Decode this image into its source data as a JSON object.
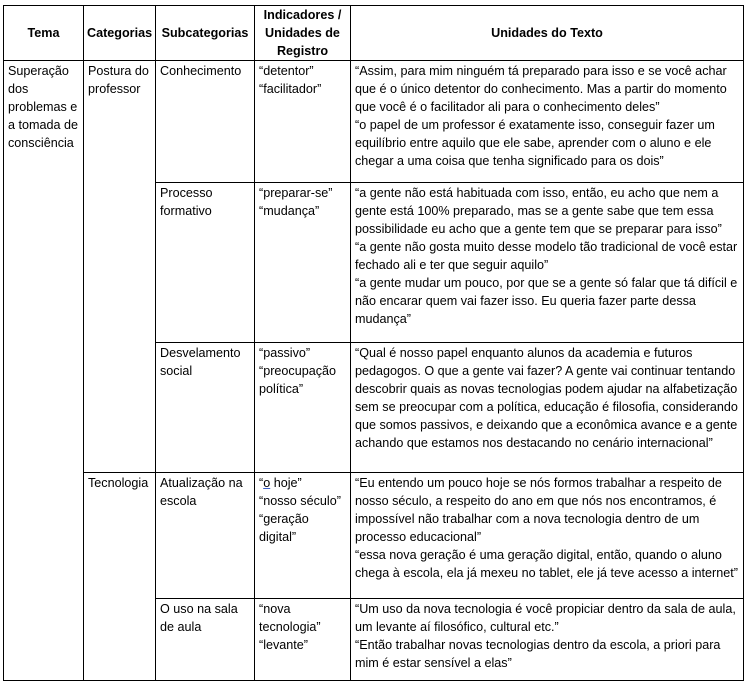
{
  "headers": [
    "Tema",
    "Categorias",
    "Subcategorias",
    "Indicadores / Unidades de Registro",
    "Unidades do Texto"
  ],
  "tema": "Superação dos problemas e a tomada de consciência",
  "categories": [
    {
      "name": "Postura do professor",
      "subcategories": [
        {
          "name": "Conhecimento",
          "indicators": [
            "“detentor”",
            "“facilitador”"
          ],
          "quotes": [
            "“Assim, para mim ninguém tá preparado para isso e se você achar que é o único detentor do conhecimento. Mas a partir do momento que você é o facilitador ali para o conhecimento deles”",
            "“o papel de um professor é exatamente isso, conseguir fazer um equilíbrio entre aquilo que ele sabe, aprender com o aluno e ele chegar a uma coisa que tenha significado para os dois”"
          ]
        },
        {
          "name": "Processo formativo",
          "indicators": [
            "“preparar-se”",
            "“mudança”"
          ],
          "quotes": [
            "“a gente não está habituada com isso, então, eu acho que nem a gente está 100% preparado, mas se a gente sabe que tem essa possibilidade eu acho que a gente tem que se preparar para isso”",
            "“a gente não gosta muito desse modelo tão tradicional de você estar fechado ali e ter que seguir aquilo”",
            "“a gente mudar um pouco, por que se a gente só falar que tá difícil e não encarar quem vai fazer isso. Eu queria fazer parte dessa mudança”"
          ]
        },
        {
          "name": "Desvelamento social",
          "indicators": [
            "“passivo”",
            "“preocupação política”"
          ],
          "quotes": [
            "“Qual é nosso papel enquanto alunos da academia e futuros pedagogos. O que a gente vai fazer? A gente vai continuar tentando descobrir quais as novas tecnologias podem ajudar na alfabetização sem se preocupar com a política, educação é filosofia, considerando que somos passivos, e deixando que a econômica avance e a gente achando que estamos nos destacando no cenário internacional”"
          ]
        }
      ]
    },
    {
      "name": "Tecnologia",
      "subcategories": [
        {
          "name": "Atualização na escola",
          "indicators": [
            "“",
            "o",
            " hoje”",
            "“nosso século”",
            "“geração digital”"
          ],
          "quotes": [
            "“Eu entendo um pouco hoje se nós formos trabalhar a respeito de nosso século, a respeito do ano em que nós nos encontramos, é impossível não trabalhar com a nova tecnologia dentro de um processo educacional”",
            "“essa nova geração é uma geração digital, então, quando o aluno chega à escola, ela já mexeu no tablet, ele já teve acesso a internet”"
          ]
        },
        {
          "name": "O uso na sala de aula",
          "indicators": [
            "“nova tecnologia”",
            "“levante”"
          ],
          "quotes": [
            "“Um uso da nova tecnologia é você propiciar dentro da sala de aula, um levante aí filosófico, cultural etc.”",
            "“Então trabalhar novas tecnologias dentro da escola, a priori para mim é estar sensível a elas”"
          ]
        }
      ]
    }
  ],
  "colors": {
    "border": "#000000",
    "spellcheck_underline": "#3a5fcd"
  }
}
